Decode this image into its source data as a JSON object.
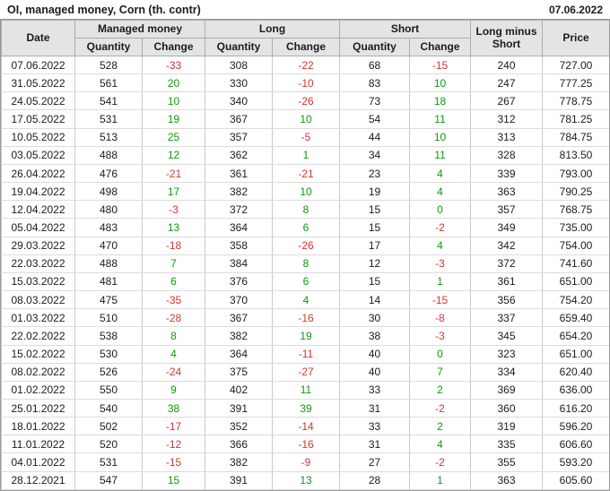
{
  "title": "OI, managed money, Corn (th. contr)",
  "report_date": "07.06.2022",
  "colors": {
    "positive": "#0f9a0f",
    "negative": "#d93434",
    "header_bg": "#e4e4e4",
    "grid_inner": "#c9c9c9",
    "grid_outer": "#9a9a9a"
  },
  "table": {
    "headers": {
      "date": "Date",
      "managed_money": "Managed money",
      "long": "Long",
      "short": "Short",
      "long_minus_short": "Long minus Short",
      "price": "Price",
      "quantity": "Quantity",
      "change": "Change"
    }
  },
  "chart_data": {
    "type": "table",
    "title": "OI, managed money, Corn (th. contr)",
    "report_date": "07.06.2022",
    "columns": [
      "Date",
      "Managed money Quantity",
      "Managed money Change",
      "Long Quantity",
      "Long Change",
      "Short Quantity",
      "Short Change",
      "Long minus Short",
      "Price"
    ],
    "rows": [
      [
        "07.06.2022",
        528,
        -33,
        308,
        -22,
        68,
        -15,
        240,
        "727.00"
      ],
      [
        "31.05.2022",
        561,
        20,
        330,
        -10,
        83,
        10,
        247,
        "777.25"
      ],
      [
        "24.05.2022",
        541,
        10,
        340,
        -26,
        73,
        18,
        267,
        "778.75"
      ],
      [
        "17.05.2022",
        531,
        19,
        367,
        10,
        54,
        11,
        312,
        "781.25"
      ],
      [
        "10.05.2022",
        513,
        25,
        357,
        -5,
        44,
        10,
        313,
        "784.75"
      ],
      [
        "03.05.2022",
        488,
        12,
        362,
        1,
        34,
        11,
        328,
        "813.50"
      ],
      [
        "26.04.2022",
        476,
        -21,
        361,
        -21,
        23,
        4,
        339,
        "793.00"
      ],
      [
        "19.04.2022",
        498,
        17,
        382,
        10,
        19,
        4,
        363,
        "790.25"
      ],
      [
        "12.04.2022",
        480,
        -3,
        372,
        8,
        15,
        0,
        357,
        "768.75"
      ],
      [
        "05.04.2022",
        483,
        13,
        364,
        6,
        15,
        -2,
        349,
        "735.00"
      ],
      [
        "29.03.2022",
        470,
        -18,
        358,
        -26,
        17,
        4,
        342,
        "754.00"
      ],
      [
        "22.03.2022",
        488,
        7,
        384,
        8,
        12,
        -3,
        372,
        "741.60"
      ],
      [
        "15.03.2022",
        481,
        6,
        376,
        6,
        15,
        1,
        361,
        "651.00"
      ],
      [
        "08.03.2022",
        475,
        -35,
        370,
        4,
        14,
        -15,
        356,
        "754.20"
      ],
      [
        "01.03.2022",
        510,
        -28,
        367,
        -16,
        30,
        -8,
        337,
        "659.40"
      ],
      [
        "22.02.2022",
        538,
        8,
        382,
        19,
        38,
        -3,
        345,
        "654.20"
      ],
      [
        "15.02.2022",
        530,
        4,
        364,
        -11,
        40,
        0,
        323,
        "651.00"
      ],
      [
        "08.02.2022",
        526,
        -24,
        375,
        -27,
        40,
        7,
        334,
        "620.40"
      ],
      [
        "01.02.2022",
        550,
        9,
        402,
        11,
        33,
        2,
        369,
        "636.00"
      ],
      [
        "25.01.2022",
        540,
        38,
        391,
        39,
        31,
        -2,
        360,
        "616.20"
      ],
      [
        "18.01.2022",
        502,
        -17,
        352,
        -14,
        33,
        2,
        319,
        "596.20"
      ],
      [
        "11.01.2022",
        520,
        -12,
        366,
        -16,
        31,
        4,
        335,
        "606.60"
      ],
      [
        "04.01.2022",
        531,
        -15,
        382,
        -9,
        27,
        -2,
        355,
        "593.20"
      ],
      [
        "28.12.2021",
        547,
        15,
        391,
        13,
        28,
        1,
        363,
        "605.60"
      ]
    ]
  }
}
